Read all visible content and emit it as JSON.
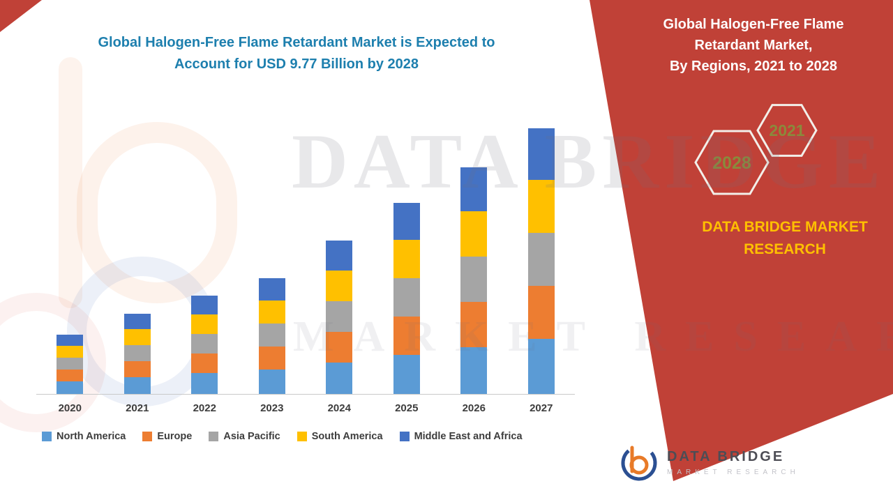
{
  "left_chart": {
    "title": "Global Halogen-Free Flame Retardant Market is Expected to Account for USD 9.77 Billion by 2028"
  },
  "chart_data": {
    "type": "bar",
    "stacked": true,
    "title": "Global Halogen-Free Flame Retardant Market is Expected to Account for USD 9.77 Billion by 2028",
    "unit_hint": "USD Billion (segment values estimated from bar heights; total reaches 9.77 by 2028)",
    "categories": [
      "2020",
      "2021",
      "2022",
      "2023",
      "2024",
      "2025",
      "2026",
      "2027"
    ],
    "series": [
      {
        "name": "North America",
        "color": "#5B9BD5",
        "values": [
          0.42,
          0.55,
          0.68,
          0.8,
          1.04,
          1.3,
          1.55,
          1.82
        ]
      },
      {
        "name": "Europe",
        "color": "#ED7D31",
        "values": [
          0.4,
          0.52,
          0.65,
          0.77,
          1.01,
          1.26,
          1.5,
          1.76
        ]
      },
      {
        "name": "Asia Pacific",
        "color": "#A5A5A5",
        "values": [
          0.4,
          0.52,
          0.65,
          0.77,
          1.01,
          1.26,
          1.5,
          1.76
        ]
      },
      {
        "name": "South America",
        "color": "#FFC000",
        "values": [
          0.4,
          0.52,
          0.65,
          0.77,
          1.01,
          1.26,
          1.5,
          1.76
        ]
      },
      {
        "name": "Middle East and Africa",
        "color": "#4472C4",
        "values": [
          0.38,
          0.5,
          0.62,
          0.74,
          0.98,
          1.22,
          1.45,
          1.7
        ]
      }
    ],
    "ylim": [
      0,
      10
    ],
    "y_axis_visible": false,
    "grid": false,
    "legend_position": "bottom"
  },
  "right_panel": {
    "background_color": "#C04137",
    "title_line1": "Global Halogen-Free Flame Retardant Market,",
    "title_line2": "By Regions, 2021 to 2028",
    "hexagons": [
      {
        "label": "2028"
      },
      {
        "label": "2021"
      }
    ],
    "brand_text": "DATA BRIDGE MARKET RESEARCH",
    "brand_text_color": "#FFC000"
  },
  "watermark": {
    "line1": "DATA BRIDGE",
    "line2": "MARKET RESEARCH"
  },
  "footer_logo": {
    "brand": "DATA BRIDGE",
    "tagline": "MARKET RESEARCH"
  }
}
